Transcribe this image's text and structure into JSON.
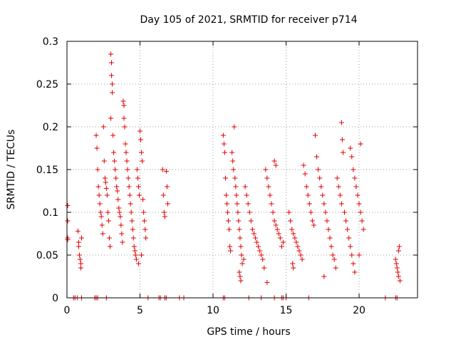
{
  "chart_data": {
    "type": "scatter",
    "title": "Day 105 of 2021, SRMTID for receiver p714",
    "xlabel": "GPS time / hours",
    "ylabel": "SRMTID / TECUs",
    "xlim": [
      0,
      24
    ],
    "ylim": [
      0,
      0.3
    ],
    "xticks": [
      0,
      5,
      10,
      15,
      20
    ],
    "xtick_labels": [
      "0",
      "5",
      "10",
      "15",
      "20"
    ],
    "yticks": [
      0,
      0.05,
      0.1,
      0.15,
      0.2,
      0.25,
      0.3
    ],
    "ytick_labels": [
      "0",
      "0.05",
      "0.1",
      "0.15",
      "0.2",
      "0.25",
      "0.3"
    ],
    "grid": true,
    "marker": "+",
    "color": "#e00000",
    "series": [
      {
        "name": "SRMTID",
        "points": [
          [
            0.05,
            0.108
          ],
          [
            0.05,
            0.09
          ],
          [
            0.05,
            0.07
          ],
          [
            0.05,
            0.068
          ],
          [
            0.75,
            0.078
          ],
          [
            0.8,
            0.065
          ],
          [
            0.8,
            0.06
          ],
          [
            0.85,
            0.05
          ],
          [
            0.9,
            0.045
          ],
          [
            0.95,
            0.04
          ],
          [
            0.95,
            0.035
          ],
          [
            1.0,
            0.07
          ],
          [
            2.0,
            0.19
          ],
          [
            2.05,
            0.175
          ],
          [
            2.1,
            0.15
          ],
          [
            2.15,
            0.13
          ],
          [
            2.2,
            0.12
          ],
          [
            2.25,
            0.11
          ],
          [
            2.3,
            0.1
          ],
          [
            2.35,
            0.095
          ],
          [
            2.4,
            0.085
          ],
          [
            2.45,
            0.075
          ],
          [
            2.5,
            0.2
          ],
          [
            2.55,
            0.16
          ],
          [
            2.6,
            0.14
          ],
          [
            2.65,
            0.135
          ],
          [
            2.7,
            0.128
          ],
          [
            2.75,
            0.12
          ],
          [
            2.8,
            0.1
          ],
          [
            2.85,
            0.09
          ],
          [
            2.9,
            0.07
          ],
          [
            2.95,
            0.06
          ],
          [
            3.0,
            0.285
          ],
          [
            3.05,
            0.275
          ],
          [
            3.05,
            0.26
          ],
          [
            3.1,
            0.25
          ],
          [
            3.1,
            0.24
          ],
          [
            3.0,
            0.21
          ],
          [
            3.15,
            0.19
          ],
          [
            3.2,
            0.17
          ],
          [
            3.25,
            0.16
          ],
          [
            3.3,
            0.15
          ],
          [
            3.35,
            0.14
          ],
          [
            3.4,
            0.13
          ],
          [
            3.45,
            0.125
          ],
          [
            3.5,
            0.115
          ],
          [
            3.55,
            0.105
          ],
          [
            3.6,
            0.1
          ],
          [
            3.65,
            0.095
          ],
          [
            3.7,
            0.085
          ],
          [
            3.75,
            0.075
          ],
          [
            3.8,
            0.065
          ],
          [
            3.85,
            0.23
          ],
          [
            3.9,
            0.225
          ],
          [
            3.9,
            0.21
          ],
          [
            3.95,
            0.2
          ],
          [
            4.0,
            0.18
          ],
          [
            4.05,
            0.17
          ],
          [
            4.1,
            0.16
          ],
          [
            4.15,
            0.15
          ],
          [
            4.2,
            0.14
          ],
          [
            4.25,
            0.13
          ],
          [
            4.3,
            0.12
          ],
          [
            4.35,
            0.11
          ],
          [
            4.4,
            0.1
          ],
          [
            4.45,
            0.09
          ],
          [
            4.5,
            0.08
          ],
          [
            4.55,
            0.07
          ],
          [
            4.6,
            0.06
          ],
          [
            4.65,
            0.055
          ],
          [
            4.7,
            0.05
          ],
          [
            4.75,
            0.045
          ],
          [
            4.8,
            0.15
          ],
          [
            4.85,
            0.14
          ],
          [
            4.9,
            0.13
          ],
          [
            4.95,
            0.12
          ],
          [
            5.0,
            0.195
          ],
          [
            5.05,
            0.185
          ],
          [
            5.1,
            0.17
          ],
          [
            5.15,
            0.16
          ],
          [
            5.2,
            0.115
          ],
          [
            5.25,
            0.1
          ],
          [
            5.3,
            0.09
          ],
          [
            5.35,
            0.08
          ],
          [
            5.4,
            0.07
          ],
          [
            5.1,
            0.05
          ],
          [
            4.9,
            0.04
          ],
          [
            6.55,
            0.15
          ],
          [
            6.6,
            0.12
          ],
          [
            6.65,
            0.1
          ],
          [
            6.7,
            0.095
          ],
          [
            6.8,
            0.148
          ],
          [
            6.85,
            0.13
          ],
          [
            6.9,
            0.11
          ],
          [
            10.7,
            0.19
          ],
          [
            10.75,
            0.18
          ],
          [
            10.8,
            0.17
          ],
          [
            10.85,
            0.14
          ],
          [
            10.9,
            0.12
          ],
          [
            10.95,
            0.11
          ],
          [
            11.0,
            0.1
          ],
          [
            11.05,
            0.09
          ],
          [
            11.1,
            0.08
          ],
          [
            11.15,
            0.06
          ],
          [
            11.2,
            0.055
          ],
          [
            11.3,
            0.17
          ],
          [
            11.35,
            0.16
          ],
          [
            11.4,
            0.15
          ],
          [
            11.45,
            0.2
          ],
          [
            11.5,
            0.14
          ],
          [
            11.55,
            0.13
          ],
          [
            11.6,
            0.12
          ],
          [
            11.65,
            0.11
          ],
          [
            11.7,
            0.1
          ],
          [
            11.75,
            0.09
          ],
          [
            11.8,
            0.08
          ],
          [
            11.85,
            0.07
          ],
          [
            11.9,
            0.06
          ],
          [
            11.95,
            0.05
          ],
          [
            11.8,
            0.03
          ],
          [
            11.85,
            0.025
          ],
          [
            11.9,
            0.02
          ],
          [
            12.0,
            0.04
          ],
          [
            12.1,
            0.045
          ],
          [
            12.2,
            0.13
          ],
          [
            12.3,
            0.12
          ],
          [
            12.4,
            0.11
          ],
          [
            12.5,
            0.1
          ],
          [
            12.6,
            0.09
          ],
          [
            12.7,
            0.08
          ],
          [
            12.8,
            0.075
          ],
          [
            12.9,
            0.07
          ],
          [
            13.0,
            0.065
          ],
          [
            13.1,
            0.06
          ],
          [
            13.2,
            0.055
          ],
          [
            13.3,
            0.05
          ],
          [
            13.4,
            0.045
          ],
          [
            13.5,
            0.035
          ],
          [
            13.6,
            0.15
          ],
          [
            13.7,
            0.14
          ],
          [
            13.8,
            0.13
          ],
          [
            13.9,
            0.12
          ],
          [
            14.0,
            0.11
          ],
          [
            14.1,
            0.1
          ],
          [
            14.2,
            0.09
          ],
          [
            14.3,
            0.085
          ],
          [
            14.4,
            0.08
          ],
          [
            14.5,
            0.075
          ],
          [
            14.6,
            0.07
          ],
          [
            14.7,
            0.06
          ],
          [
            14.2,
            0.16
          ],
          [
            14.3,
            0.155
          ],
          [
            14.8,
            0.065
          ],
          [
            13.7,
            0.018
          ],
          [
            15.2,
            0.1
          ],
          [
            15.3,
            0.09
          ],
          [
            15.4,
            0.08
          ],
          [
            15.5,
            0.075
          ],
          [
            15.6,
            0.07
          ],
          [
            15.7,
            0.065
          ],
          [
            15.8,
            0.06
          ],
          [
            15.9,
            0.055
          ],
          [
            16.0,
            0.05
          ],
          [
            16.1,
            0.045
          ],
          [
            15.45,
            0.04
          ],
          [
            15.5,
            0.035
          ],
          [
            16.2,
            0.155
          ],
          [
            16.3,
            0.145
          ],
          [
            16.4,
            0.13
          ],
          [
            16.5,
            0.12
          ],
          [
            16.6,
            0.11
          ],
          [
            16.7,
            0.1
          ],
          [
            16.8,
            0.09
          ],
          [
            16.9,
            0.085
          ],
          [
            17.0,
            0.19
          ],
          [
            17.1,
            0.165
          ],
          [
            17.2,
            0.15
          ],
          [
            17.3,
            0.14
          ],
          [
            17.4,
            0.13
          ],
          [
            17.5,
            0.12
          ],
          [
            17.6,
            0.11
          ],
          [
            17.7,
            0.1
          ],
          [
            17.8,
            0.09
          ],
          [
            17.9,
            0.08
          ],
          [
            18.0,
            0.07
          ],
          [
            18.1,
            0.06
          ],
          [
            18.2,
            0.05
          ],
          [
            18.3,
            0.045
          ],
          [
            18.4,
            0.035
          ],
          [
            17.6,
            0.025
          ],
          [
            18.5,
            0.14
          ],
          [
            18.6,
            0.13
          ],
          [
            18.7,
            0.12
          ],
          [
            18.8,
            0.11
          ],
          [
            18.8,
            0.205
          ],
          [
            18.85,
            0.185
          ],
          [
            18.9,
            0.17
          ],
          [
            19.0,
            0.1
          ],
          [
            19.1,
            0.09
          ],
          [
            19.2,
            0.08
          ],
          [
            19.3,
            0.07
          ],
          [
            19.4,
            0.06
          ],
          [
            19.5,
            0.05
          ],
          [
            19.6,
            0.04
          ],
          [
            19.4,
            0.175
          ],
          [
            19.5,
            0.165
          ],
          [
            19.6,
            0.15
          ],
          [
            19.7,
            0.14
          ],
          [
            19.8,
            0.13
          ],
          [
            19.9,
            0.12
          ],
          [
            20.0,
            0.11
          ],
          [
            20.1,
            0.1
          ],
          [
            20.2,
            0.09
          ],
          [
            20.3,
            0.08
          ],
          [
            19.7,
            0.03
          ],
          [
            20.0,
            0.05
          ],
          [
            20.1,
            0.18
          ],
          [
            22.5,
            0.045
          ],
          [
            22.55,
            0.04
          ],
          [
            22.6,
            0.035
          ],
          [
            22.65,
            0.03
          ],
          [
            22.7,
            0.025
          ],
          [
            22.7,
            0.055
          ],
          [
            22.75,
            0.06
          ],
          [
            22.8,
            0.02
          ],
          [
            0.45,
            0
          ],
          [
            0.55,
            0
          ],
          [
            0.7,
            0
          ],
          [
            1.0,
            0
          ],
          [
            1.9,
            0
          ],
          [
            2.0,
            0
          ],
          [
            2.1,
            0
          ],
          [
            2.7,
            0
          ],
          [
            5.55,
            0
          ],
          [
            6.3,
            0
          ],
          [
            6.4,
            0
          ],
          [
            6.7,
            0
          ],
          [
            6.8,
            0
          ],
          [
            7.7,
            0
          ],
          [
            8.0,
            0
          ],
          [
            10.7,
            0
          ],
          [
            10.8,
            0
          ],
          [
            12.45,
            0
          ],
          [
            13.3,
            0
          ],
          [
            14.2,
            0
          ],
          [
            14.7,
            0
          ],
          [
            14.8,
            0
          ],
          [
            15.0,
            0
          ],
          [
            16.55,
            0
          ],
          [
            21.8,
            0
          ],
          [
            22.5,
            0
          ],
          [
            22.6,
            0
          ]
        ]
      }
    ]
  }
}
